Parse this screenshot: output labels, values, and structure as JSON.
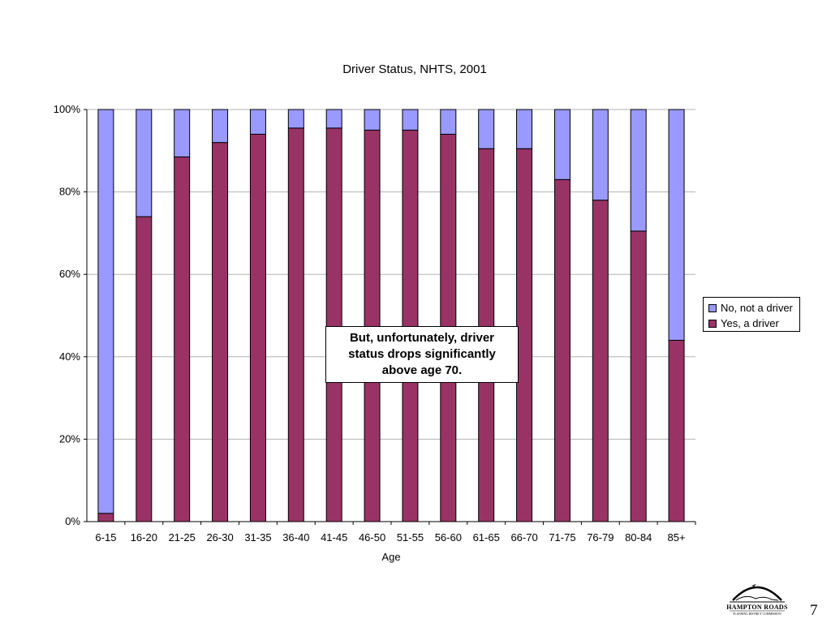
{
  "chart_data": {
    "type": "bar",
    "stacked": true,
    "percent": true,
    "title": "Driver Status, NHTS, 2001",
    "xlabel": "Age",
    "ylabel": "",
    "ylim": [
      0,
      100
    ],
    "yticks": [
      "0%",
      "20%",
      "40%",
      "60%",
      "80%",
      "100%"
    ],
    "grid": true,
    "legend_position": "right",
    "categories": [
      "6-15",
      "16-20",
      "21-25",
      "26-30",
      "31-35",
      "36-40",
      "41-45",
      "46-50",
      "51-55",
      "56-60",
      "61-65",
      "66-70",
      "71-75",
      "76-79",
      "80-84",
      "85+"
    ],
    "series": [
      {
        "name": "Yes, a driver",
        "color": "#993366",
        "values": [
          2,
          74,
          88.5,
          92,
          94,
          95.5,
          95.5,
          95,
          95,
          94,
          90.5,
          90.5,
          83,
          78,
          70.5,
          44
        ]
      },
      {
        "name": "No, not a driver",
        "color": "#9999ff",
        "values": [
          98,
          26,
          11.5,
          8,
          6,
          4.5,
          4.5,
          5,
          5,
          6,
          9.5,
          9.5,
          17,
          22,
          29.5,
          56
        ]
      }
    ],
    "legend": [
      "No, not a driver",
      "Yes, a driver"
    ],
    "annotation": "But, unfortunately, driver status drops significantly above age 70."
  },
  "page_number": "7",
  "logo": {
    "title": "HAMPTON ROADS",
    "subtitle": "PLANNING DISTRICT COMMISSION"
  }
}
